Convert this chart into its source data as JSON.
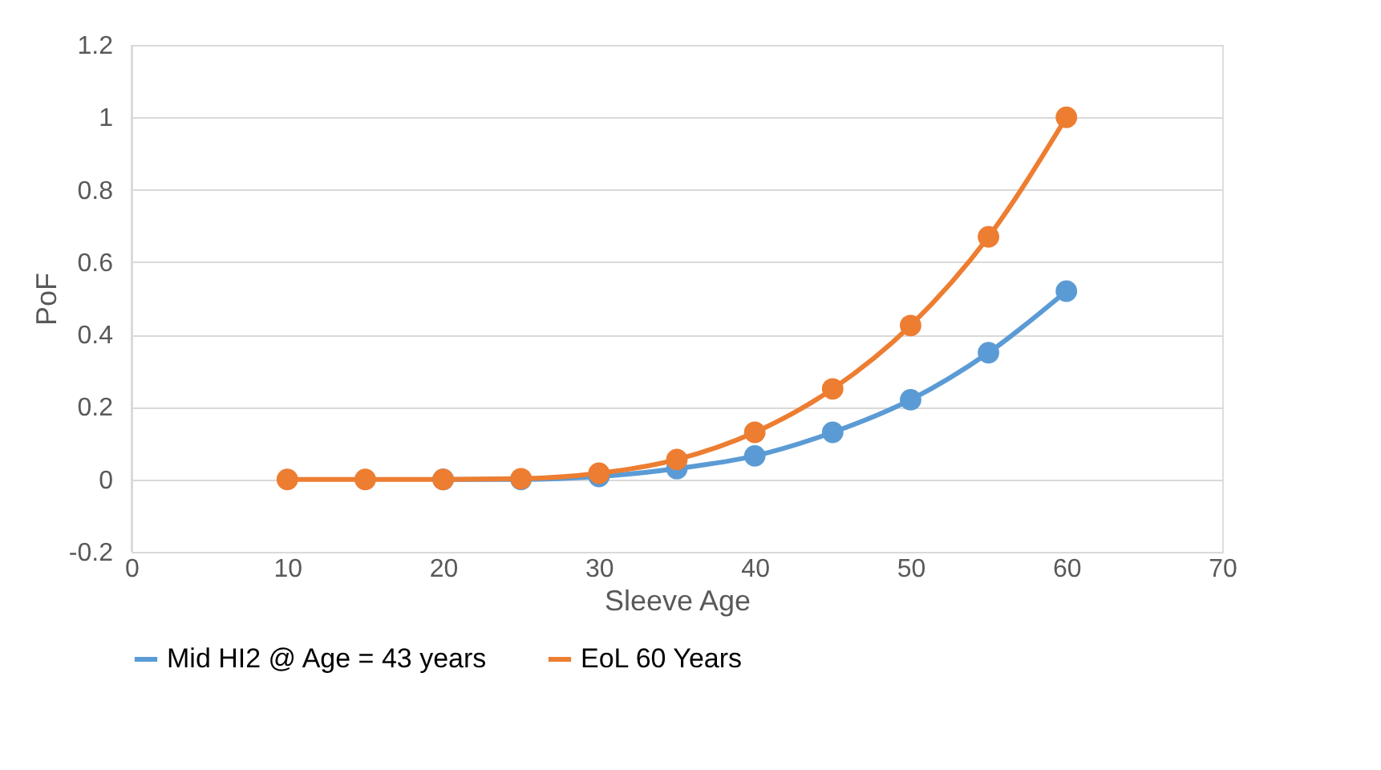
{
  "chart_data": {
    "type": "line",
    "xlabel": "Sleeve Age",
    "ylabel": "PoF",
    "x": [
      10,
      15,
      20,
      25,
      30,
      35,
      40,
      45,
      50,
      55,
      60
    ],
    "series": [
      {
        "name": "Mid HI2 @ Age = 43 years",
        "color": "#5b9bd5",
        "values": [
          null,
          null,
          0,
          0,
          0.008,
          0.03,
          0.065,
          0.13,
          0.22,
          0.35,
          0.52
        ]
      },
      {
        "name": "EoL 60 Years",
        "color": "#ed7d31",
        "values": [
          0,
          0,
          0,
          0.002,
          0.017,
          0.055,
          0.13,
          0.25,
          0.425,
          0.67,
          1.0
        ]
      }
    ],
    "xlim": [
      0,
      70
    ],
    "xticks": [
      0,
      10,
      20,
      30,
      40,
      50,
      60,
      70
    ],
    "ylim": [
      -0.2,
      1.2
    ],
    "yticks": [
      -0.2,
      0,
      0.2,
      0.4,
      0.6,
      0.8,
      1,
      1.2
    ],
    "grid": "y",
    "legend": "bottom",
    "marker": "circle",
    "line_style": "solid"
  }
}
